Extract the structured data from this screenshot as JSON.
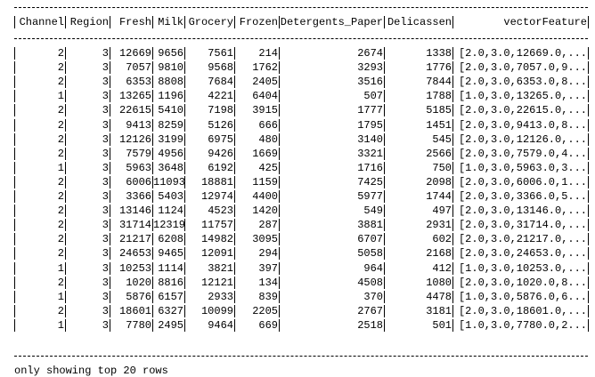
{
  "table": {
    "header": [
      "Channel",
      "Region",
      "Fresh",
      "Milk",
      "Grocery",
      "Frozen",
      "Detergents_Paper",
      "Delicassen",
      "vectorFeature"
    ],
    "rows": [
      [
        2,
        3,
        12669,
        9656,
        7561,
        214,
        2674,
        1338,
        "[2.0,3.0,12669.0,..."
      ],
      [
        2,
        3,
        7057,
        9810,
        9568,
        1762,
        3293,
        1776,
        "[2.0,3.0,7057.0,9..."
      ],
      [
        2,
        3,
        6353,
        8808,
        7684,
        2405,
        3516,
        7844,
        "[2.0,3.0,6353.0,8..."
      ],
      [
        1,
        3,
        13265,
        1196,
        4221,
        6404,
        507,
        1788,
        "[1.0,3.0,13265.0,..."
      ],
      [
        2,
        3,
        22615,
        5410,
        7198,
        3915,
        1777,
        5185,
        "[2.0,3.0,22615.0,..."
      ],
      [
        2,
        3,
        9413,
        8259,
        5126,
        666,
        1795,
        1451,
        "[2.0,3.0,9413.0,8..."
      ],
      [
        2,
        3,
        12126,
        3199,
        6975,
        480,
        3140,
        545,
        "[2.0,3.0,12126.0,..."
      ],
      [
        2,
        3,
        7579,
        4956,
        9426,
        1669,
        3321,
        2566,
        "[2.0,3.0,7579.0,4..."
      ],
      [
        1,
        3,
        5963,
        3648,
        6192,
        425,
        1716,
        750,
        "[1.0,3.0,5963.0,3..."
      ],
      [
        2,
        3,
        6006,
        11093,
        18881,
        1159,
        7425,
        2098,
        "[2.0,3.0,6006.0,1..."
      ],
      [
        2,
        3,
        3366,
        5403,
        12974,
        4400,
        5977,
        1744,
        "[2.0,3.0,3366.0,5..."
      ],
      [
        2,
        3,
        13146,
        1124,
        4523,
        1420,
        549,
        497,
        "[2.0,3.0,13146.0,..."
      ],
      [
        2,
        3,
        31714,
        12319,
        11757,
        287,
        3881,
        2931,
        "[2.0,3.0,31714.0,..."
      ],
      [
        2,
        3,
        21217,
        6208,
        14982,
        3095,
        6707,
        602,
        "[2.0,3.0,21217.0,..."
      ],
      [
        2,
        3,
        24653,
        9465,
        12091,
        294,
        5058,
        2168,
        "[2.0,3.0,24653.0,..."
      ],
      [
        1,
        3,
        10253,
        1114,
        3821,
        397,
        964,
        412,
        "[1.0,3.0,10253.0,..."
      ],
      [
        2,
        3,
        1020,
        8816,
        12121,
        134,
        4508,
        1080,
        "[2.0,3.0,1020.0,8..."
      ],
      [
        1,
        3,
        5876,
        6157,
        2933,
        839,
        370,
        4478,
        "[1.0,3.0,5876.0,6..."
      ],
      [
        2,
        3,
        18601,
        6327,
        10099,
        2205,
        2767,
        3181,
        "[2.0,3.0,18601.0,..."
      ],
      [
        1,
        3,
        7780,
        2495,
        9464,
        669,
        2518,
        501,
        "[1.0,3.0,7780.0,2..."
      ]
    ]
  },
  "footer": "only showing top 20 rows"
}
